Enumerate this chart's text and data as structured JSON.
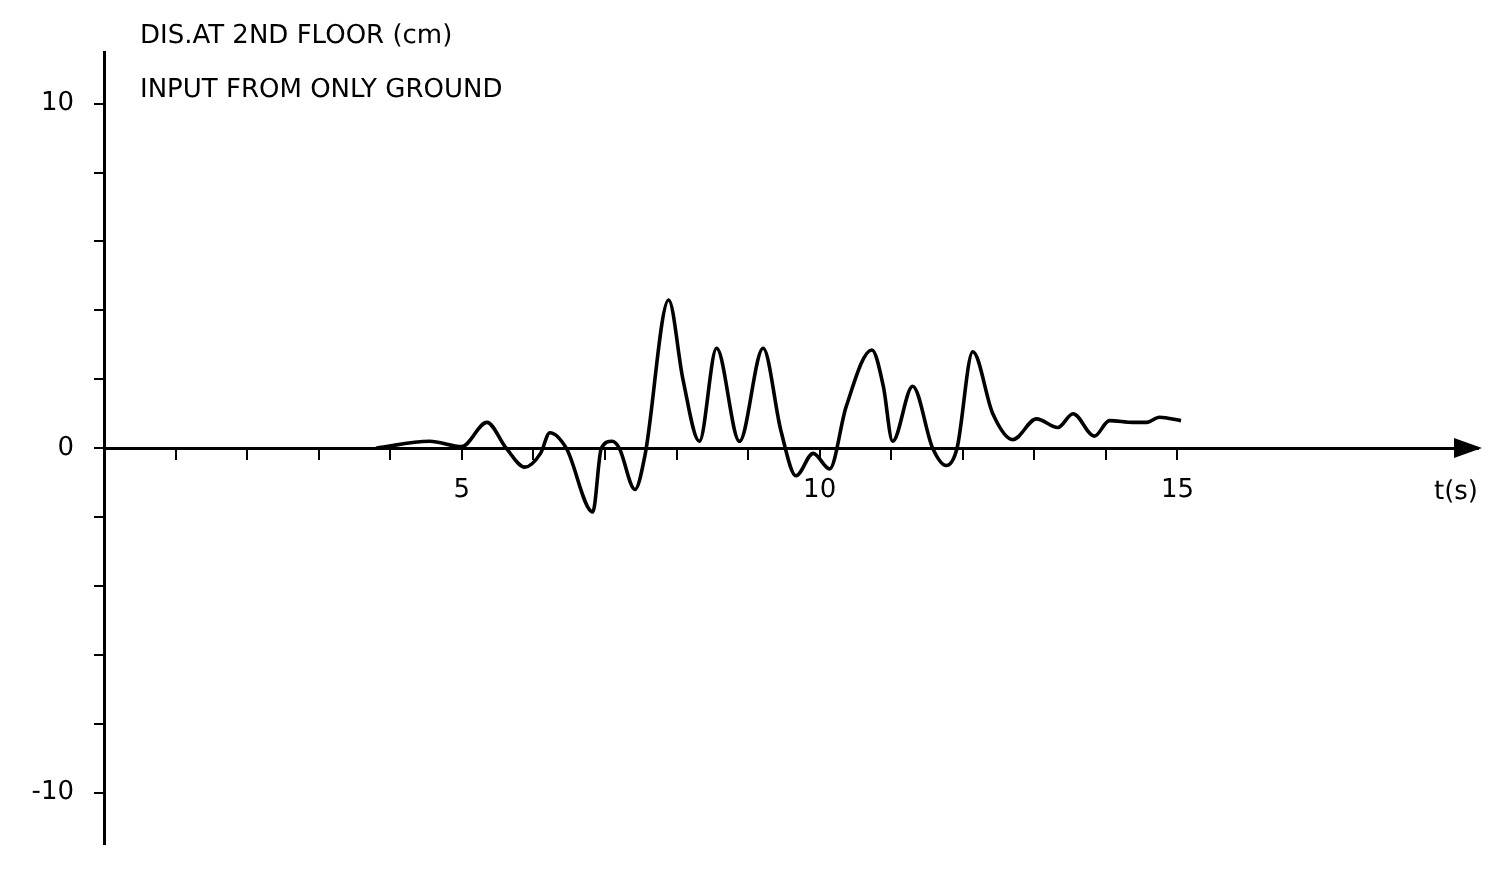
{
  "chart_data": {
    "type": "line",
    "title": "DIS.AT 2ND FLOOR (cm)",
    "subtitle": "INPUT FROM ONLY GROUND",
    "xlabel": "t(s)",
    "x": [
      3.8,
      4.55,
      5.0,
      5.35,
      5.62,
      5.88,
      6.1,
      6.23,
      6.46,
      6.83,
      6.95,
      7.1,
      7.2,
      7.42,
      7.56,
      7.89,
      8.09,
      8.32,
      8.56,
      8.88,
      9.21,
      9.46,
      9.67,
      9.91,
      10.14,
      10.37,
      10.73,
      10.89,
      11.02,
      11.3,
      11.58,
      11.77,
      11.92,
      12.14,
      12.42,
      12.7,
      13.03,
      13.33,
      13.54,
      13.84,
      14.05,
      14.38,
      14.57,
      14.75,
      15.05
    ],
    "series": [
      {
        "color": "#000000",
        "values": [
          0,
          0.2,
          0.05,
          0.75,
          0,
          -0.55,
          -0.15,
          0.45,
          0,
          -1.85,
          0,
          0.2,
          0,
          -1.2,
          -0.2,
          4.3,
          2.0,
          0.2,
          2.9,
          0.2,
          2.9,
          0.5,
          -0.8,
          -0.15,
          -0.6,
          1.2,
          2.85,
          1.8,
          0.2,
          1.8,
          0,
          -0.5,
          0,
          2.8,
          1.0,
          0.25,
          0.85,
          0.6,
          1.0,
          0.35,
          0.8,
          0.75,
          0.75,
          0.9,
          0.8
        ]
      }
    ],
    "xlim": [
      0,
      19.2
    ],
    "ylim": [
      -11.5,
      11.5
    ],
    "xticks": [
      {
        "value": 1,
        "label": null
      },
      {
        "value": 2,
        "label": null
      },
      {
        "value": 3,
        "label": null
      },
      {
        "value": 4,
        "label": null
      },
      5,
      {
        "value": 6,
        "label": null
      },
      {
        "value": 7,
        "label": null
      },
      {
        "value": 8,
        "label": null
      },
      {
        "value": 9,
        "label": null
      },
      10,
      {
        "value": 11,
        "label": null
      },
      {
        "value": 12,
        "label": null
      },
      {
        "value": 13,
        "label": null
      },
      {
        "value": 14,
        "label": null
      },
      15
    ],
    "yticks": [
      -10,
      {
        "value": -8,
        "label": null
      },
      {
        "value": -6,
        "label": null
      },
      {
        "value": -4,
        "label": null
      },
      {
        "value": -2,
        "label": null
      },
      0,
      {
        "value": 2,
        "label": null
      },
      {
        "value": 4,
        "label": null
      },
      {
        "value": 6,
        "label": null
      },
      {
        "value": 8,
        "label": null
      },
      10
    ],
    "grid": false,
    "legend": false,
    "marker": "none",
    "line_style": "solid"
  }
}
